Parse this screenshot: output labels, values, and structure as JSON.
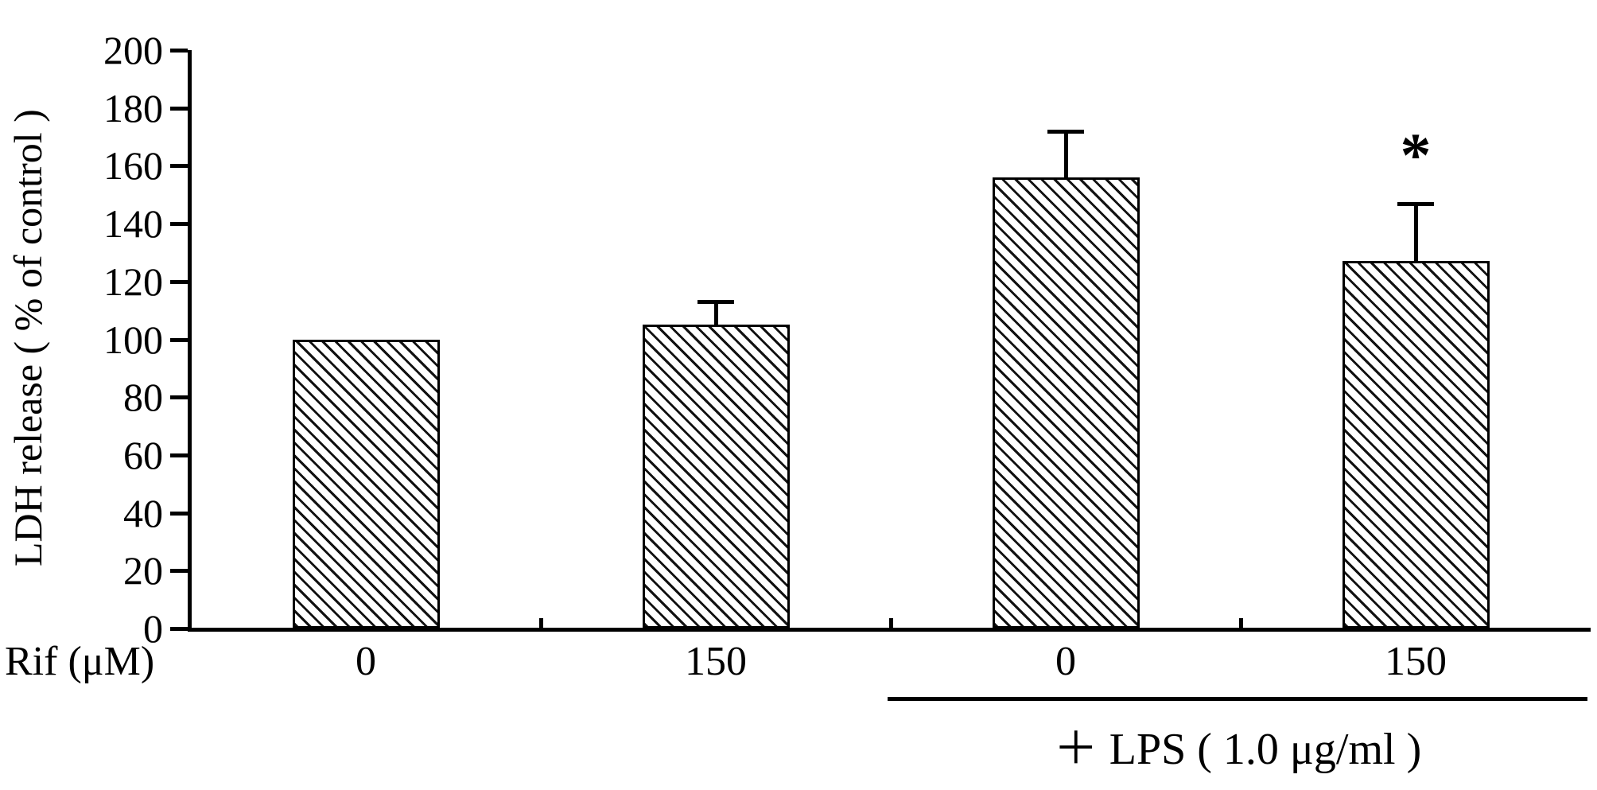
{
  "chart_data": {
    "type": "bar",
    "title": "",
    "ylabel": "LDH release ( % of control )",
    "x_axis_label": "Rif (μM)",
    "categories": [
      "0",
      "150",
      "0",
      "150"
    ],
    "values": [
      100,
      105,
      156,
      127
    ],
    "errors": [
      0,
      8,
      16,
      20
    ],
    "ylim": [
      0,
      200
    ],
    "yticks": [
      0,
      20,
      40,
      60,
      80,
      100,
      120,
      140,
      160,
      180,
      200
    ],
    "grid": false,
    "bar_fill": "#ffffff",
    "hatch_color": "#111111",
    "axis_color": "#000000",
    "hatch_style": "diagonal",
    "annotations": [
      {
        "type": "significance",
        "text": "*",
        "bar_index": 3
      }
    ],
    "group_annotation": {
      "text": "＋ LPS ( 1.0 μg/ml )",
      "bars": [
        2,
        3
      ]
    }
  }
}
